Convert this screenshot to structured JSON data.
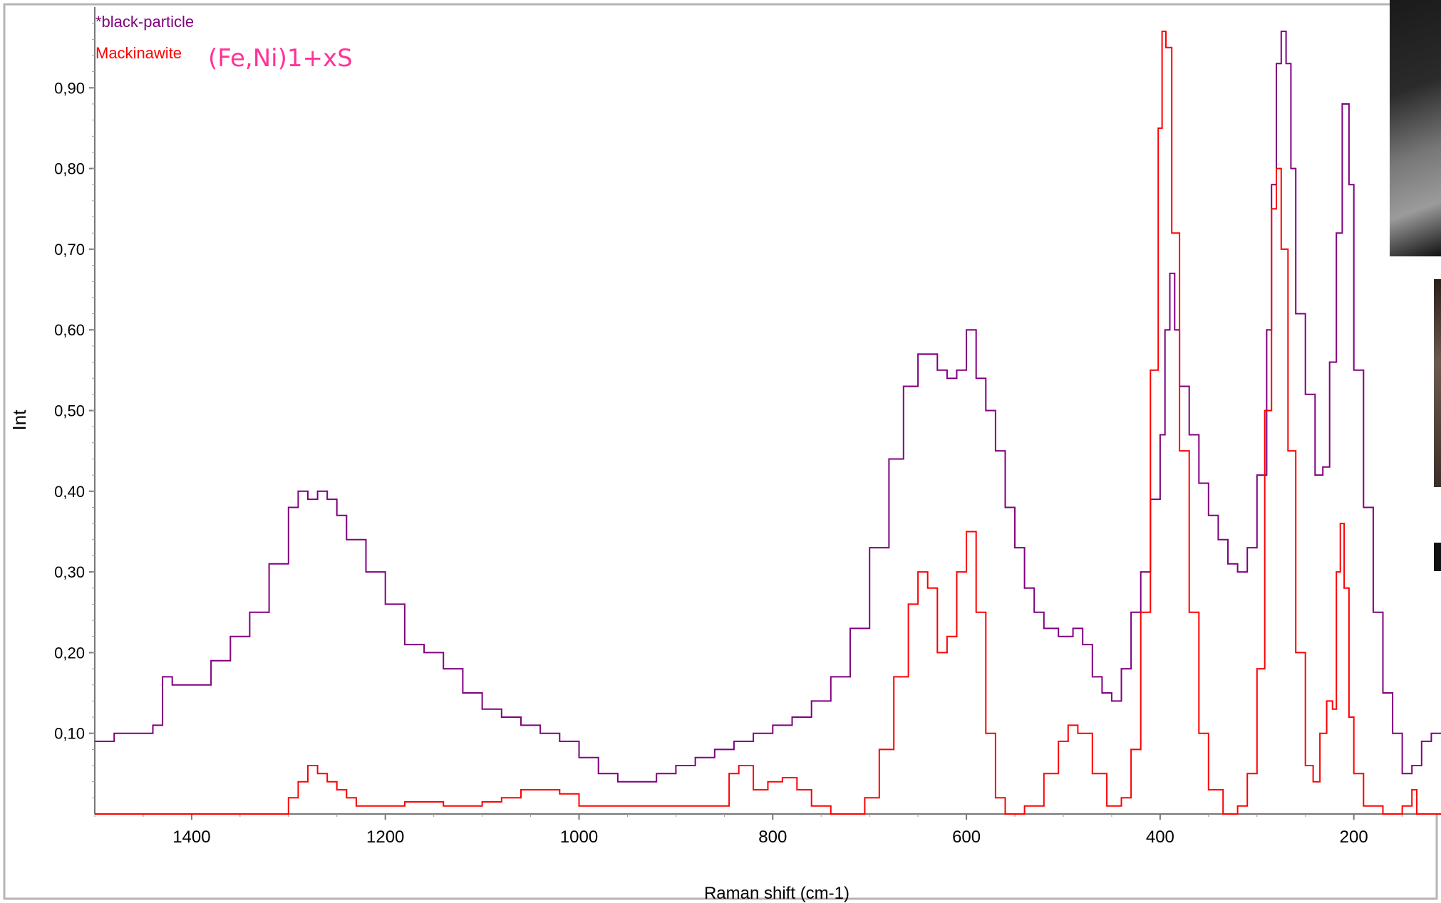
{
  "chart_data": {
    "type": "line",
    "xlabel": "Raman shift (cm-1)",
    "ylabel": "Int",
    "xlim": [
      1500,
      110
    ],
    "ylim": [
      0,
      1.0
    ],
    "x_reversed": true,
    "x_ticks": [
      1400,
      1200,
      1000,
      800,
      600,
      400,
      200
    ],
    "y_ticks": [
      0.1,
      0.2,
      0.3,
      0.4,
      0.5,
      0.6,
      0.7,
      0.8,
      0.9
    ],
    "y_tick_labels": [
      "0,10",
      "0,20",
      "0,30",
      "0,40",
      "0,50",
      "0,60",
      "0,70",
      "0,80",
      "0,90"
    ],
    "annotation": "(Fe,Ni)1+xS",
    "series": [
      {
        "name": "*black-particle",
        "color": "#800080",
        "points": [
          [
            1500,
            0.09
          ],
          [
            1480,
            0.1
          ],
          [
            1460,
            0.1
          ],
          [
            1440,
            0.11
          ],
          [
            1430,
            0.17
          ],
          [
            1420,
            0.16
          ],
          [
            1400,
            0.16
          ],
          [
            1380,
            0.19
          ],
          [
            1360,
            0.22
          ],
          [
            1340,
            0.25
          ],
          [
            1320,
            0.31
          ],
          [
            1300,
            0.38
          ],
          [
            1290,
            0.4
          ],
          [
            1280,
            0.39
          ],
          [
            1270,
            0.4
          ],
          [
            1260,
            0.39
          ],
          [
            1250,
            0.37
          ],
          [
            1240,
            0.34
          ],
          [
            1220,
            0.3
          ],
          [
            1200,
            0.26
          ],
          [
            1180,
            0.21
          ],
          [
            1160,
            0.2
          ],
          [
            1140,
            0.18
          ],
          [
            1120,
            0.15
          ],
          [
            1100,
            0.13
          ],
          [
            1080,
            0.12
          ],
          [
            1060,
            0.11
          ],
          [
            1040,
            0.1
          ],
          [
            1020,
            0.09
          ],
          [
            1000,
            0.07
          ],
          [
            980,
            0.05
          ],
          [
            960,
            0.04
          ],
          [
            940,
            0.04
          ],
          [
            920,
            0.05
          ],
          [
            900,
            0.06
          ],
          [
            880,
            0.07
          ],
          [
            860,
            0.08
          ],
          [
            840,
            0.09
          ],
          [
            820,
            0.1
          ],
          [
            800,
            0.11
          ],
          [
            780,
            0.12
          ],
          [
            760,
            0.14
          ],
          [
            740,
            0.17
          ],
          [
            720,
            0.23
          ],
          [
            700,
            0.33
          ],
          [
            680,
            0.44
          ],
          [
            665,
            0.53
          ],
          [
            650,
            0.57
          ],
          [
            640,
            0.57
          ],
          [
            630,
            0.55
          ],
          [
            620,
            0.54
          ],
          [
            610,
            0.55
          ],
          [
            600,
            0.6
          ],
          [
            590,
            0.54
          ],
          [
            580,
            0.5
          ],
          [
            570,
            0.45
          ],
          [
            560,
            0.38
          ],
          [
            550,
            0.33
          ],
          [
            540,
            0.28
          ],
          [
            530,
            0.25
          ],
          [
            520,
            0.23
          ],
          [
            505,
            0.22
          ],
          [
            490,
            0.23
          ],
          [
            480,
            0.21
          ],
          [
            470,
            0.17
          ],
          [
            460,
            0.15
          ],
          [
            450,
            0.14
          ],
          [
            440,
            0.18
          ],
          [
            430,
            0.25
          ],
          [
            420,
            0.3
          ],
          [
            410,
            0.39
          ],
          [
            400,
            0.47
          ],
          [
            395,
            0.6
          ],
          [
            390,
            0.67
          ],
          [
            385,
            0.6
          ],
          [
            380,
            0.53
          ],
          [
            370,
            0.47
          ],
          [
            360,
            0.41
          ],
          [
            350,
            0.37
          ],
          [
            340,
            0.34
          ],
          [
            330,
            0.31
          ],
          [
            320,
            0.3
          ],
          [
            310,
            0.33
          ],
          [
            300,
            0.42
          ],
          [
            290,
            0.6
          ],
          [
            285,
            0.78
          ],
          [
            280,
            0.93
          ],
          [
            275,
            0.97
          ],
          [
            270,
            0.93
          ],
          [
            265,
            0.8
          ],
          [
            260,
            0.62
          ],
          [
            250,
            0.52
          ],
          [
            240,
            0.42
          ],
          [
            232,
            0.43
          ],
          [
            225,
            0.56
          ],
          [
            218,
            0.72
          ],
          [
            212,
            0.88
          ],
          [
            205,
            0.78
          ],
          [
            200,
            0.55
          ],
          [
            190,
            0.38
          ],
          [
            180,
            0.25
          ],
          [
            170,
            0.15
          ],
          [
            160,
            0.1
          ],
          [
            150,
            0.05
          ],
          [
            140,
            0.06
          ],
          [
            130,
            0.09
          ],
          [
            120,
            0.1
          ],
          [
            110,
            0.1
          ]
        ]
      },
      {
        "name": "Mackinawite",
        "color": "#ff0000",
        "points": [
          [
            1500,
            0.0
          ],
          [
            1305,
            0.0
          ],
          [
            1300,
            0.02
          ],
          [
            1290,
            0.04
          ],
          [
            1280,
            0.06
          ],
          [
            1270,
            0.05
          ],
          [
            1260,
            0.04
          ],
          [
            1250,
            0.03
          ],
          [
            1240,
            0.02
          ],
          [
            1230,
            0.01
          ],
          [
            1200,
            0.01
          ],
          [
            1180,
            0.015
          ],
          [
            1160,
            0.015
          ],
          [
            1140,
            0.01
          ],
          [
            1100,
            0.015
          ],
          [
            1080,
            0.02
          ],
          [
            1060,
            0.03
          ],
          [
            1040,
            0.03
          ],
          [
            1020,
            0.025
          ],
          [
            1000,
            0.01
          ],
          [
            950,
            0.01
          ],
          [
            900,
            0.01
          ],
          [
            860,
            0.01
          ],
          [
            845,
            0.05
          ],
          [
            835,
            0.06
          ],
          [
            820,
            0.03
          ],
          [
            805,
            0.04
          ],
          [
            790,
            0.045
          ],
          [
            775,
            0.03
          ],
          [
            760,
            0.01
          ],
          [
            740,
            0.0
          ],
          [
            720,
            0.0
          ],
          [
            705,
            0.02
          ],
          [
            690,
            0.08
          ],
          [
            675,
            0.17
          ],
          [
            660,
            0.26
          ],
          [
            650,
            0.3
          ],
          [
            640,
            0.28
          ],
          [
            630,
            0.2
          ],
          [
            620,
            0.22
          ],
          [
            610,
            0.3
          ],
          [
            600,
            0.35
          ],
          [
            590,
            0.25
          ],
          [
            580,
            0.1
          ],
          [
            570,
            0.02
          ],
          [
            560,
            0.0
          ],
          [
            540,
            0.01
          ],
          [
            520,
            0.05
          ],
          [
            505,
            0.09
          ],
          [
            495,
            0.11
          ],
          [
            485,
            0.1
          ],
          [
            470,
            0.05
          ],
          [
            455,
            0.01
          ],
          [
            440,
            0.02
          ],
          [
            430,
            0.08
          ],
          [
            420,
            0.25
          ],
          [
            410,
            0.55
          ],
          [
            402,
            0.85
          ],
          [
            398,
            0.97
          ],
          [
            394,
            0.95
          ],
          [
            388,
            0.72
          ],
          [
            380,
            0.45
          ],
          [
            370,
            0.25
          ],
          [
            360,
            0.1
          ],
          [
            350,
            0.03
          ],
          [
            335,
            0.0
          ],
          [
            320,
            0.01
          ],
          [
            310,
            0.05
          ],
          [
            300,
            0.18
          ],
          [
            292,
            0.5
          ],
          [
            285,
            0.75
          ],
          [
            280,
            0.8
          ],
          [
            275,
            0.7
          ],
          [
            268,
            0.45
          ],
          [
            260,
            0.2
          ],
          [
            250,
            0.06
          ],
          [
            242,
            0.04
          ],
          [
            235,
            0.1
          ],
          [
            228,
            0.14
          ],
          [
            222,
            0.13
          ],
          [
            218,
            0.3
          ],
          [
            214,
            0.36
          ],
          [
            210,
            0.28
          ],
          [
            205,
            0.12
          ],
          [
            200,
            0.05
          ],
          [
            190,
            0.01
          ],
          [
            170,
            0.0
          ],
          [
            150,
            0.01
          ],
          [
            140,
            0.03
          ],
          [
            135,
            0.0
          ],
          [
            110,
            0.0
          ]
        ]
      }
    ]
  }
}
